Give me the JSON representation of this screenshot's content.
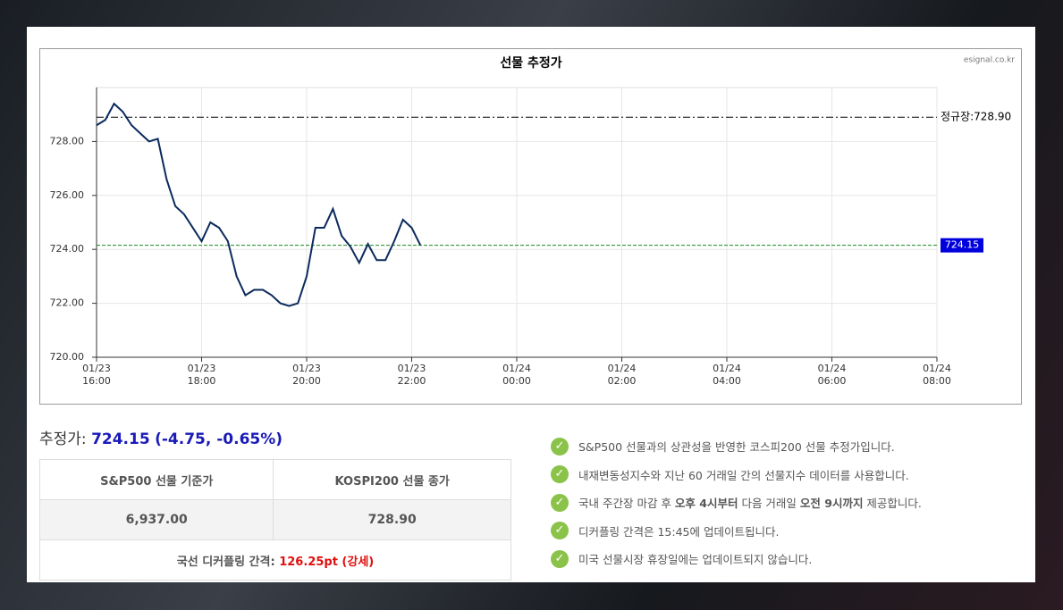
{
  "chart_data": {
    "type": "line",
    "title": "선물 추정가",
    "source": "esignal.co.kr",
    "x": [
      "01/23 16:00",
      "01/23 16:10",
      "01/23 16:20",
      "01/23 16:30",
      "01/23 16:40",
      "01/23 16:50",
      "01/23 17:00",
      "01/23 17:10",
      "01/23 17:20",
      "01/23 17:30",
      "01/23 17:40",
      "01/23 17:50",
      "01/23 18:00",
      "01/23 18:10",
      "01/23 18:20",
      "01/23 18:30",
      "01/23 18:40",
      "01/23 18:50",
      "01/23 19:00",
      "01/23 19:10",
      "01/23 19:20",
      "01/23 19:30",
      "01/23 19:40",
      "01/23 19:50",
      "01/23 20:00",
      "01/23 20:10",
      "01/23 20:20",
      "01/23 20:30",
      "01/23 20:40",
      "01/23 20:50",
      "01/23 21:00",
      "01/23 21:10",
      "01/23 21:20",
      "01/23 21:30",
      "01/23 21:40",
      "01/23 21:50",
      "01/23 22:00",
      "01/23 22:10"
    ],
    "series": [
      {
        "color": "#0b2a5c",
        "values": [
          728.6,
          728.8,
          729.4,
          729.1,
          728.6,
          728.3,
          728.0,
          728.1,
          726.6,
          725.6,
          725.3,
          724.8,
          724.3,
          725.0,
          724.8,
          724.3,
          723.0,
          722.3,
          722.5,
          722.5,
          722.3,
          722.0,
          721.9,
          722.0,
          723.0,
          724.8,
          724.8,
          725.5,
          724.5,
          724.1,
          723.5,
          724.2,
          723.6,
          723.6,
          724.3,
          725.1,
          724.8,
          724.15
        ]
      }
    ],
    "xlim": [
      "01/23 16:00",
      "01/24 08:00"
    ],
    "xticks": [
      "01/23 16:00",
      "01/23 18:00",
      "01/23 20:00",
      "01/23 22:00",
      "01/24 00:00",
      "01/24 02:00",
      "01/24 04:00",
      "01/24 06:00",
      "01/24 08:00"
    ],
    "ylim": [
      720,
      730
    ],
    "yticks": [
      {
        "value": 720,
        "label": "720.00"
      },
      {
        "value": 722,
        "label": "722.00"
      },
      {
        "value": 724,
        "label": "724.00"
      },
      {
        "value": 726,
        "label": "726.00"
      },
      {
        "value": 728,
        "label": "728.00"
      }
    ],
    "grid": true,
    "reference_lines": [
      {
        "value": 728.9,
        "label": "정규장:728.90",
        "color": "#000000"
      },
      {
        "value": 724.15,
        "label": "724.15",
        "color": "#1a8a1a"
      }
    ]
  },
  "summary": {
    "label": "추정가:",
    "value": "724.15",
    "change": "(-4.75, -0.65%)"
  },
  "table": {
    "headers": [
      "S&P500 선물 기준가",
      "KOSPI200 선물 종가"
    ],
    "values": [
      "6,937.00",
      "728.90"
    ],
    "gap_label": "국선 디커플링 간격:",
    "gap_value": "126.25pt (강세)"
  },
  "notes": [
    [
      "S&P500 선물과의 상관성을 반영한 코스피200 선물 추정가입니다."
    ],
    [
      "내재변동성지수와 지난 60 거래일 간의 선물지수 데이터를 사용합니다."
    ],
    [
      "국내 주간장 마감 후 ",
      "오후 4시부터",
      " 다음 거래일 ",
      "오전 9시까지",
      " 제공합니다."
    ],
    [
      "디커플링 간격은 15:45에 업데이트됩니다."
    ],
    [
      "미국 선물시장 휴장일에는 업데이트되지 않습니다."
    ]
  ]
}
